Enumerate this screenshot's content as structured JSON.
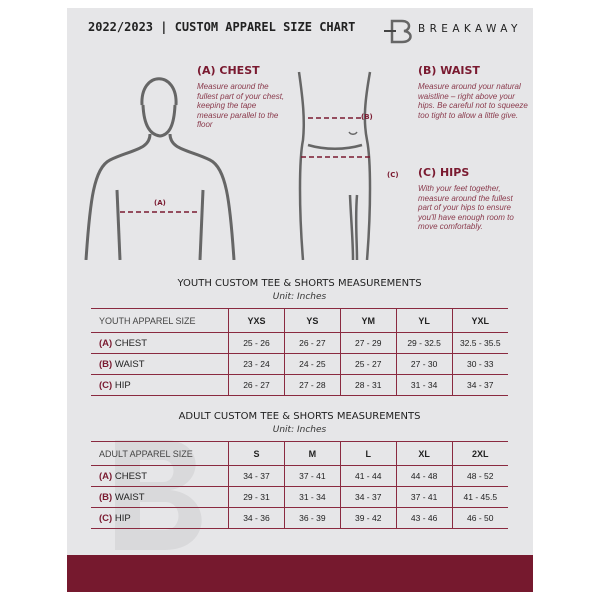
{
  "header": {
    "title": "2022/2023  |  CUSTOM APPAREL SIZE CHART",
    "brand": "BREAKAWAY"
  },
  "guide": {
    "chest": {
      "title": "(A) CHEST",
      "text": "Measure around the fullest part of your chest, keeping the tape measure parallel to the floor",
      "marker": "(A)"
    },
    "waist": {
      "title": "(B) WAIST",
      "text": "Measure around your natural waistline – right above your hips. Be careful not to squeeze too tight to allow a little give.",
      "marker": "(B)"
    },
    "hips": {
      "title": "(C) HIPS",
      "text": "With your feet together, measure around the fullest part of your hips to ensure you'll have enough room to move comfortably.",
      "marker": "(C)"
    }
  },
  "youth": {
    "title": "YOUTH CUSTOM TEE & SHORTS MEASUREMENTS",
    "unit": "Unit: Inches",
    "header": [
      "YOUTH APPAREL SIZE",
      "YXS",
      "YS",
      "YM",
      "YL",
      "YXL"
    ],
    "rows": [
      {
        "code": "(A)",
        "label": "CHEST",
        "values": [
          "25 - 26",
          "26 - 27",
          "27 - 29",
          "29 - 32.5",
          "32.5 - 35.5"
        ]
      },
      {
        "code": "(B)",
        "label": "WAIST",
        "values": [
          "23 - 24",
          "24 - 25",
          "25 - 27",
          "27 - 30",
          "30 - 33"
        ]
      },
      {
        "code": "(C)",
        "label": "HIP",
        "values": [
          "26 - 27",
          "27 - 28",
          "28 - 31",
          "31 - 34",
          "34 - 37"
        ]
      }
    ]
  },
  "adult": {
    "title": "ADULT CUSTOM TEE & SHORTS MEASUREMENTS",
    "unit": "Unit: Inches",
    "header": [
      "ADULT APPAREL SIZE",
      "S",
      "M",
      "L",
      "XL",
      "2XL"
    ],
    "rows": [
      {
        "code": "(A)",
        "label": "CHEST",
        "values": [
          "34 - 37",
          "37 - 41",
          "41 - 44",
          "44 - 48",
          "48 - 52"
        ]
      },
      {
        "code": "(B)",
        "label": "WAIST",
        "values": [
          "29 - 31",
          "31 - 34",
          "34 - 37",
          "37 - 41",
          "41 - 45.5"
        ]
      },
      {
        "code": "(C)",
        "label": "HIP",
        "values": [
          "34 - 36",
          "36 - 39",
          "39 - 42",
          "43 - 46",
          "46 - 50"
        ]
      }
    ]
  },
  "colors": {
    "accent": "#76192e",
    "background": "#e6e6e8"
  }
}
